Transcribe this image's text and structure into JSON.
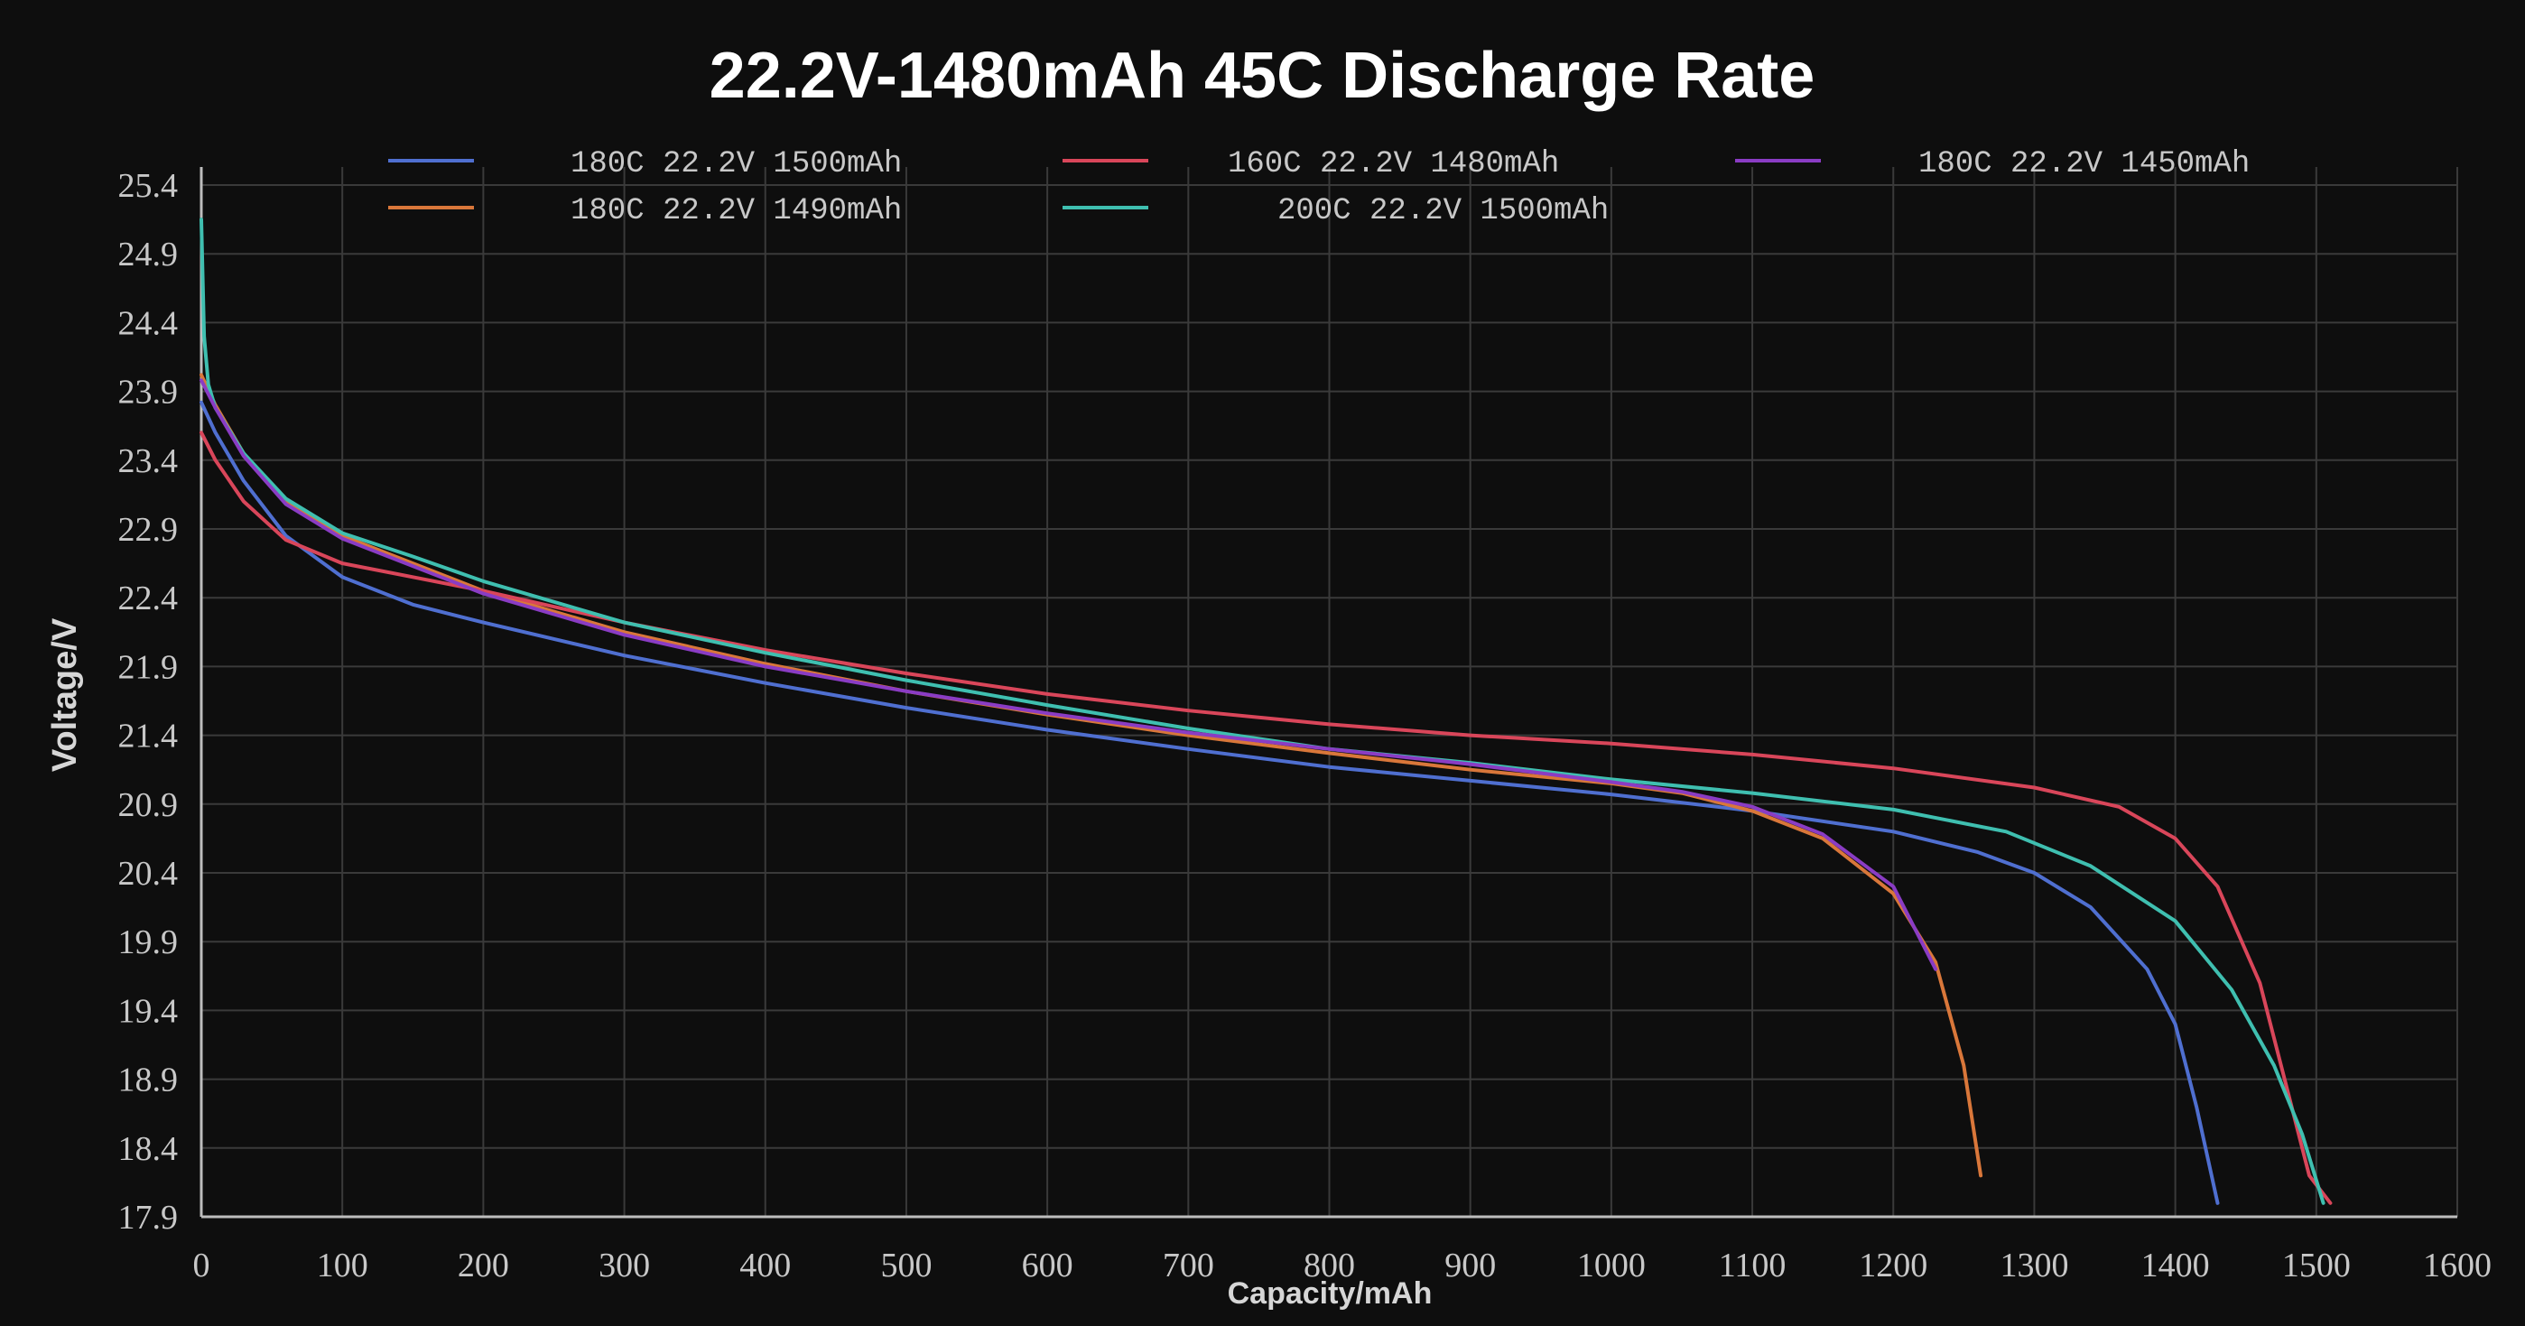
{
  "chart_data": {
    "type": "line",
    "title": "22.2V-1480mAh 45C Discharge Rate",
    "xlabel": "Capacity/mAh",
    "ylabel": "Voltage/V",
    "xlim": [
      0,
      1600
    ],
    "ylim": [
      17.9,
      25.4
    ],
    "x_ticks": [
      "0",
      "100",
      "200",
      "300",
      "400",
      "500",
      "600",
      "700",
      "800",
      "900",
      "1000",
      "1100",
      "1200",
      "1300",
      "1400",
      "1500",
      "1600"
    ],
    "y_ticks": [
      "25.4",
      "24.9",
      "24.4",
      "23.9",
      "23.4",
      "22.9",
      "22.4",
      "21.9",
      "21.4",
      "20.9",
      "20.4",
      "19.9",
      "19.4",
      "18.9",
      "18.4",
      "17.9"
    ],
    "grid": true,
    "legend_position": "top",
    "series": [
      {
        "name": "180C 22.2V 1500mAh",
        "color": "#4f6fd0",
        "points": [
          [
            0,
            23.82
          ],
          [
            10,
            23.6
          ],
          [
            30,
            23.25
          ],
          [
            60,
            22.85
          ],
          [
            100,
            22.55
          ],
          [
            150,
            22.35
          ],
          [
            200,
            22.22
          ],
          [
            300,
            21.98
          ],
          [
            400,
            21.78
          ],
          [
            500,
            21.6
          ],
          [
            600,
            21.44
          ],
          [
            700,
            21.3
          ],
          [
            800,
            21.17
          ],
          [
            900,
            21.07
          ],
          [
            1000,
            20.97
          ],
          [
            1100,
            20.85
          ],
          [
            1200,
            20.7
          ],
          [
            1260,
            20.55
          ],
          [
            1300,
            20.4
          ],
          [
            1340,
            20.15
          ],
          [
            1380,
            19.7
          ],
          [
            1400,
            19.3
          ],
          [
            1415,
            18.7
          ],
          [
            1430,
            18.0
          ]
        ]
      },
      {
        "name": "180C 22.2V 1490mAh",
        "color": "#d9773a",
        "points": [
          [
            0,
            24.02
          ],
          [
            10,
            23.8
          ],
          [
            30,
            23.45
          ],
          [
            60,
            23.1
          ],
          [
            100,
            22.85
          ],
          [
            150,
            22.65
          ],
          [
            200,
            22.45
          ],
          [
            300,
            22.15
          ],
          [
            400,
            21.92
          ],
          [
            500,
            21.72
          ],
          [
            600,
            21.55
          ],
          [
            700,
            21.4
          ],
          [
            800,
            21.27
          ],
          [
            900,
            21.15
          ],
          [
            1000,
            21.05
          ],
          [
            1050,
            20.98
          ],
          [
            1100,
            20.85
          ],
          [
            1150,
            20.65
          ],
          [
            1200,
            20.25
          ],
          [
            1230,
            19.75
          ],
          [
            1250,
            19.0
          ],
          [
            1262,
            18.2
          ]
        ]
      },
      {
        "name": "160C 22.2V 1480mAh",
        "color": "#d9465a",
        "points": [
          [
            0,
            23.6
          ],
          [
            10,
            23.4
          ],
          [
            30,
            23.1
          ],
          [
            60,
            22.82
          ],
          [
            100,
            22.65
          ],
          [
            150,
            22.55
          ],
          [
            200,
            22.45
          ],
          [
            300,
            22.22
          ],
          [
            400,
            22.02
          ],
          [
            500,
            21.85
          ],
          [
            600,
            21.7
          ],
          [
            700,
            21.58
          ],
          [
            800,
            21.48
          ],
          [
            900,
            21.4
          ],
          [
            1000,
            21.34
          ],
          [
            1100,
            21.26
          ],
          [
            1200,
            21.16
          ],
          [
            1300,
            21.02
          ],
          [
            1360,
            20.88
          ],
          [
            1400,
            20.65
          ],
          [
            1430,
            20.3
          ],
          [
            1460,
            19.6
          ],
          [
            1480,
            18.8
          ],
          [
            1495,
            18.2
          ],
          [
            1510,
            18.0
          ]
        ]
      },
      {
        "name": "200C 22.2V 1500mAh",
        "color": "#3fbfb0",
        "points": [
          [
            0,
            25.15
          ],
          [
            2,
            24.3
          ],
          [
            5,
            23.95
          ],
          [
            10,
            23.78
          ],
          [
            30,
            23.45
          ],
          [
            60,
            23.12
          ],
          [
            100,
            22.87
          ],
          [
            150,
            22.7
          ],
          [
            200,
            22.52
          ],
          [
            300,
            22.22
          ],
          [
            400,
            22.0
          ],
          [
            500,
            21.8
          ],
          [
            600,
            21.62
          ],
          [
            700,
            21.45
          ],
          [
            800,
            21.3
          ],
          [
            900,
            21.2
          ],
          [
            1000,
            21.08
          ],
          [
            1100,
            20.98
          ],
          [
            1200,
            20.86
          ],
          [
            1280,
            20.7
          ],
          [
            1340,
            20.45
          ],
          [
            1400,
            20.05
          ],
          [
            1440,
            19.55
          ],
          [
            1470,
            19.0
          ],
          [
            1490,
            18.5
          ],
          [
            1505,
            18.0
          ]
        ]
      },
      {
        "name": "180C 22.2V 1450mAh",
        "color": "#8a3cc4",
        "points": [
          [
            0,
            23.98
          ],
          [
            10,
            23.78
          ],
          [
            30,
            23.43
          ],
          [
            60,
            23.08
          ],
          [
            100,
            22.83
          ],
          [
            150,
            22.63
          ],
          [
            200,
            22.43
          ],
          [
            300,
            22.13
          ],
          [
            400,
            21.9
          ],
          [
            500,
            21.72
          ],
          [
            600,
            21.56
          ],
          [
            700,
            21.42
          ],
          [
            800,
            21.3
          ],
          [
            900,
            21.19
          ],
          [
            1000,
            21.06
          ],
          [
            1050,
            20.99
          ],
          [
            1100,
            20.88
          ],
          [
            1150,
            20.68
          ],
          [
            1200,
            20.3
          ],
          [
            1230,
            19.7
          ]
        ]
      }
    ]
  }
}
